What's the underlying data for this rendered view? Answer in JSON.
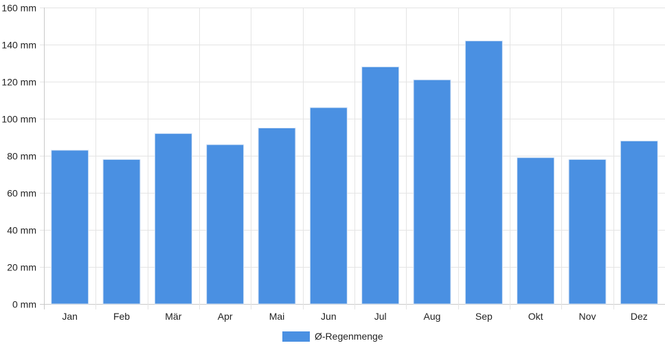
{
  "chart_data": {
    "type": "bar",
    "categories": [
      "Jan",
      "Feb",
      "Mär",
      "Apr",
      "Mai",
      "Jun",
      "Jul",
      "Aug",
      "Sep",
      "Okt",
      "Nov",
      "Dez"
    ],
    "series": [
      {
        "name": "Ø-Regenmenge",
        "values": [
          83,
          78,
          92,
          86,
          95,
          106,
          128,
          121,
          142,
          79,
          78,
          88
        ],
        "color": "#4a90e2"
      }
    ],
    "ylim": [
      0,
      160
    ],
    "yticks": [
      0,
      20,
      40,
      60,
      80,
      100,
      120,
      140,
      160
    ],
    "ytick_labels": [
      "0 mm",
      "20 mm",
      "40 mm",
      "60 mm",
      "80 mm",
      "100 mm",
      "120 mm",
      "140 mm",
      "160 mm"
    ],
    "grid": true,
    "legend_position": "bottom-center",
    "title": "",
    "xlabel": "",
    "ylabel": ""
  }
}
